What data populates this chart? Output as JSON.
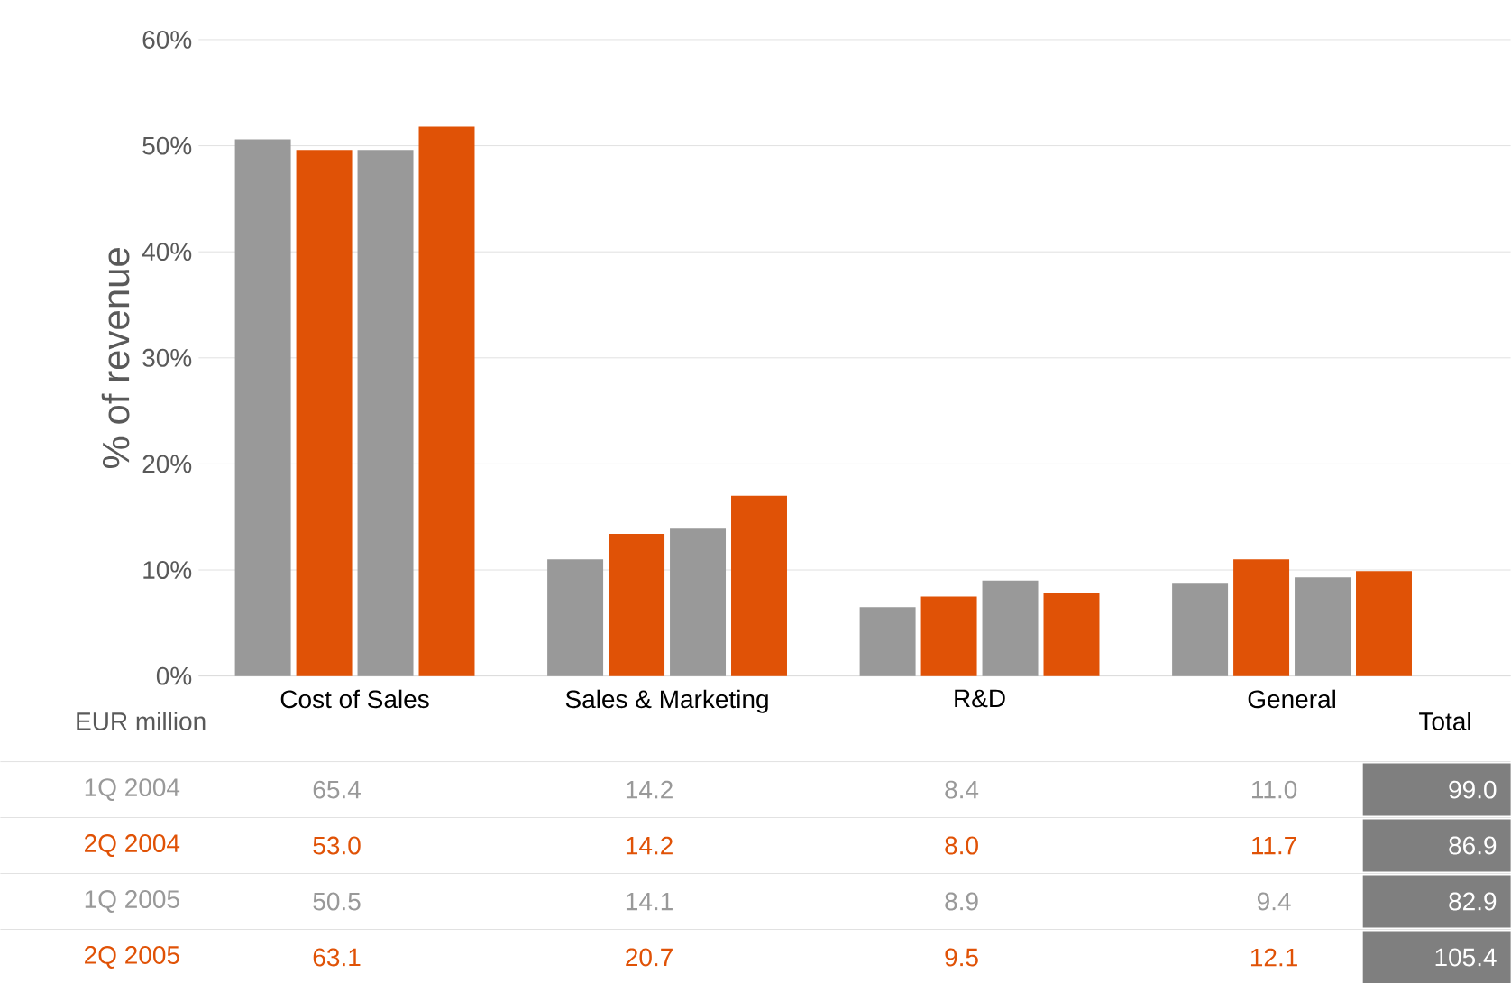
{
  "chart_data": {
    "type": "bar",
    "ylabel": "% of revenue",
    "categories": [
      "Cost of Sales",
      "Sales & Marketing",
      "R&D",
      "General"
    ],
    "series": [
      {
        "color": "#999999",
        "values": [
          50.6,
          11.0,
          6.5,
          8.7
        ]
      },
      {
        "color": "#e05206",
        "values": [
          49.6,
          13.4,
          7.5,
          11.0
        ]
      },
      {
        "color": "#999999",
        "values": [
          49.6,
          13.9,
          9.0,
          9.3
        ]
      },
      {
        "color": "#e05206",
        "values": [
          51.8,
          17.0,
          7.8,
          9.9
        ]
      }
    ],
    "ylim": [
      0,
      60
    ],
    "yticks": [
      {
        "value": 0,
        "label": "0%"
      },
      {
        "value": 10,
        "label": "10%"
      },
      {
        "value": 20,
        "label": "20%"
      },
      {
        "value": 30,
        "label": "30%"
      },
      {
        "value": 40,
        "label": "40%"
      },
      {
        "value": 50,
        "label": "50%"
      },
      {
        "value": 60,
        "label": "60%"
      }
    ],
    "grid": "y",
    "annotations": [
      "EUR million",
      "Total",
      "1Q 2004",
      "65.4",
      "14.2",
      "8.4",
      "11.0",
      "99.0",
      "2Q 2004",
      "53.0",
      "14.2",
      "8.0",
      "11.7",
      "86.9",
      "1Q 2005",
      "50.5",
      "14.1",
      "8.9",
      "9.4",
      "82.9",
      "2Q 2005",
      "63.1",
      "20.7",
      "9.5",
      "12.1",
      "105.4"
    ]
  }
}
